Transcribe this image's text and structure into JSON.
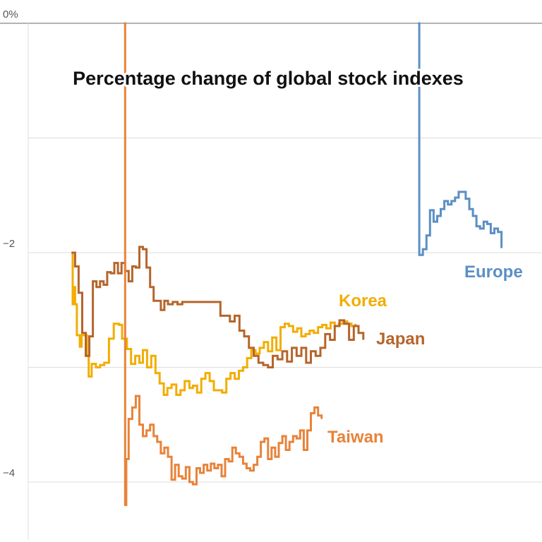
{
  "chart_data": {
    "type": "line",
    "title": "Percentage change of global stock indexes",
    "xlabel": "",
    "ylabel": "",
    "ylim": [
      -4.45,
      0.2
    ],
    "xlim": [
      0,
      1
    ],
    "y_ticks": [
      {
        "value": 0,
        "label": "0%"
      },
      {
        "value": -1,
        "label": ""
      },
      {
        "value": -2,
        "label": "−2"
      },
      {
        "value": -3,
        "label": ""
      },
      {
        "value": -4,
        "label": "−4"
      }
    ],
    "grid": true,
    "colors": {
      "europe": "#5b8fc4",
      "korea": "#f2ad00",
      "japan": "#b5652b",
      "taiwan": "#e8833a",
      "grid": "#dddddd",
      "zero": "#888888"
    },
    "series": [
      {
        "name": "Korea",
        "key": "korea",
        "x": [
          0.1319,
          0.1341,
          0.1363,
          0.1385,
          0.1418,
          0.1473,
          0.1505,
          0.1605,
          0.1637,
          0.1692,
          0.1769,
          0.1846,
          0.1923,
          0.2011,
          0.2099,
          0.2198,
          0.2253,
          0.2341,
          0.2418,
          0.2495,
          0.2571,
          0.2637,
          0.2714,
          0.2791,
          0.2868,
          0.2945,
          0.3022,
          0.3088,
          0.3165,
          0.3253,
          0.333,
          0.3407,
          0.3495,
          0.356,
          0.3637,
          0.3714,
          0.3791,
          0.3868,
          0.3945,
          0.4022,
          0.4099,
          0.4176,
          0.4253,
          0.433,
          0.4407,
          0.4484,
          0.456,
          0.4637,
          0.4714,
          0.4791,
          0.4868,
          0.4945,
          0.5022,
          0.5099,
          0.5176,
          0.5253,
          0.533,
          0.5407,
          0.5484,
          0.556,
          0.5637,
          0.5714,
          0.5791,
          0.5868,
          0.5945,
          0.6022,
          0.6099,
          0.6176,
          0.6253,
          0.633,
          0.6407,
          0.6484,
          0.656
        ],
        "y": [
          -2.0,
          -2.45,
          -2.3,
          -2.45,
          -2.72,
          -2.82,
          -2.72,
          -2.9,
          -3.08,
          -2.97,
          -3.0,
          -2.98,
          -2.96,
          -2.75,
          -2.62,
          -2.63,
          -2.75,
          -2.84,
          -2.97,
          -2.9,
          -2.96,
          -2.85,
          -3.0,
          -2.9,
          -3.05,
          -3.14,
          -3.24,
          -3.18,
          -3.15,
          -3.24,
          -3.2,
          -3.12,
          -3.18,
          -3.16,
          -3.22,
          -3.1,
          -3.05,
          -3.12,
          -3.2,
          -3.2,
          -3.22,
          -3.1,
          -3.05,
          -3.1,
          -3.03,
          -3.0,
          -2.92,
          -2.85,
          -2.88,
          -2.83,
          -2.78,
          -2.86,
          -2.74,
          -2.85,
          -2.65,
          -2.62,
          -2.64,
          -2.69,
          -2.66,
          -2.73,
          -2.71,
          -2.68,
          -2.7,
          -2.65,
          -2.63,
          -2.66,
          -2.61,
          -2.64,
          -2.62,
          -2.6,
          -2.62,
          -2.64,
          -2.62
        ]
      },
      {
        "name": "Japan",
        "key": "japan",
        "x": [
          0.1319,
          0.1385,
          0.1451,
          0.1517,
          0.1582,
          0.1648,
          0.1714,
          0.178,
          0.1846,
          0.1912,
          0.1978,
          0.2044,
          0.211,
          0.2176,
          0.2242,
          0.2308,
          0.2374,
          0.244,
          0.2505,
          0.2571,
          0.2637,
          0.2703,
          0.2769,
          0.2835,
          0.2901,
          0.2967,
          0.3033,
          0.3099,
          0.3187,
          0.3275,
          0.3363,
          0.3451,
          0.3538,
          0.3626,
          0.3714,
          0.3802,
          0.389,
          0.3978,
          0.4066,
          0.4154,
          0.4242,
          0.433,
          0.4418,
          0.4505,
          0.4593,
          0.4681,
          0.4769,
          0.4857,
          0.4945,
          0.5033,
          0.5121,
          0.5209,
          0.5297,
          0.5385,
          0.5473,
          0.556,
          0.5648,
          0.5736,
          0.5824,
          0.5912,
          0.6,
          0.6088,
          0.6176,
          0.6264,
          0.6352,
          0.644,
          0.6527,
          0.6615,
          0.6703
        ],
        "y": [
          -2.0,
          -2.12,
          -2.35,
          -2.7,
          -2.9,
          -2.73,
          -2.25,
          -2.3,
          -2.25,
          -2.28,
          -2.17,
          -2.18,
          -2.09,
          -2.18,
          -2.09,
          -2.16,
          -2.25,
          -2.12,
          -2.13,
          -1.95,
          -1.97,
          -2.13,
          -2.3,
          -2.42,
          -2.42,
          -2.5,
          -2.42,
          -2.45,
          -2.43,
          -2.45,
          -2.43,
          -2.43,
          -2.43,
          -2.43,
          -2.43,
          -2.43,
          -2.43,
          -2.43,
          -2.55,
          -2.55,
          -2.6,
          -2.55,
          -2.68,
          -2.73,
          -2.83,
          -2.9,
          -2.96,
          -2.98,
          -3.0,
          -2.9,
          -2.93,
          -2.86,
          -2.95,
          -2.83,
          -2.9,
          -2.83,
          -2.96,
          -2.86,
          -2.9,
          -2.83,
          -2.71,
          -2.76,
          -2.64,
          -2.59,
          -2.62,
          -2.76,
          -2.64,
          -2.7,
          -2.76
        ]
      },
      {
        "name": "Taiwan",
        "key": "taiwan",
        "x": [
          0.2286,
          0.2308,
          0.233,
          0.2374,
          0.244,
          0.2505,
          0.2571,
          0.2637,
          0.2703,
          0.2769,
          0.2835,
          0.2901,
          0.2967,
          0.3033,
          0.3099,
          0.3165,
          0.3231,
          0.3297,
          0.3363,
          0.3429,
          0.3495,
          0.356,
          0.3626,
          0.3692,
          0.3758,
          0.3824,
          0.389,
          0.3956,
          0.4022,
          0.4088,
          0.4154,
          0.422,
          0.4286,
          0.4352,
          0.4418,
          0.4484,
          0.4549,
          0.4615,
          0.4681,
          0.4747,
          0.4813,
          0.4879,
          0.4945,
          0.5011,
          0.5077,
          0.5143,
          0.5209,
          0.5275,
          0.5341,
          0.5407,
          0.5473,
          0.5538,
          0.5604,
          0.567,
          0.5736,
          0.5802,
          0.5868,
          0.5934
        ],
        "y": [
          0.0,
          -4.2,
          -3.8,
          -3.45,
          -3.35,
          -3.25,
          -3.5,
          -3.6,
          -3.55,
          -3.5,
          -3.6,
          -3.65,
          -3.75,
          -3.7,
          -3.78,
          -3.98,
          -3.85,
          -3.95,
          -3.97,
          -3.87,
          -4.0,
          -4.02,
          -3.88,
          -3.92,
          -3.85,
          -3.9,
          -3.84,
          -3.88,
          -3.85,
          -3.95,
          -3.8,
          -3.82,
          -3.7,
          -3.75,
          -3.78,
          -3.84,
          -3.88,
          -3.9,
          -3.85,
          -3.78,
          -3.65,
          -3.62,
          -3.8,
          -3.7,
          -3.78,
          -3.66,
          -3.6,
          -3.72,
          -3.65,
          -3.6,
          -3.62,
          -3.55,
          -3.72,
          -3.55,
          -3.4,
          -3.35,
          -3.42,
          -3.45
        ]
      },
      {
        "name": "Europe",
        "key": "europe",
        "x": [
          0.7714,
          0.7736,
          0.7802,
          0.7868,
          0.7934,
          0.8,
          0.8066,
          0.8132,
          0.8198,
          0.8264,
          0.833,
          0.8396,
          0.8462,
          0.8527,
          0.8593,
          0.8659,
          0.8725,
          0.8791,
          0.8857,
          0.8923,
          0.8989,
          0.9055,
          0.9121,
          0.9187,
          0.9253
        ],
        "y": [
          0.0,
          -2.02,
          -1.97,
          -1.85,
          -1.63,
          -1.73,
          -1.68,
          -1.62,
          -1.55,
          -1.58,
          -1.55,
          -1.52,
          -1.47,
          -1.47,
          -1.53,
          -1.62,
          -1.68,
          -1.77,
          -1.79,
          -1.73,
          -1.75,
          -1.83,
          -1.79,
          -1.82,
          -1.96
        ]
      }
    ],
    "labels": {
      "europe": "Europe",
      "korea": "Korea",
      "japan": "Japan",
      "taiwan": "Taiwan"
    }
  }
}
